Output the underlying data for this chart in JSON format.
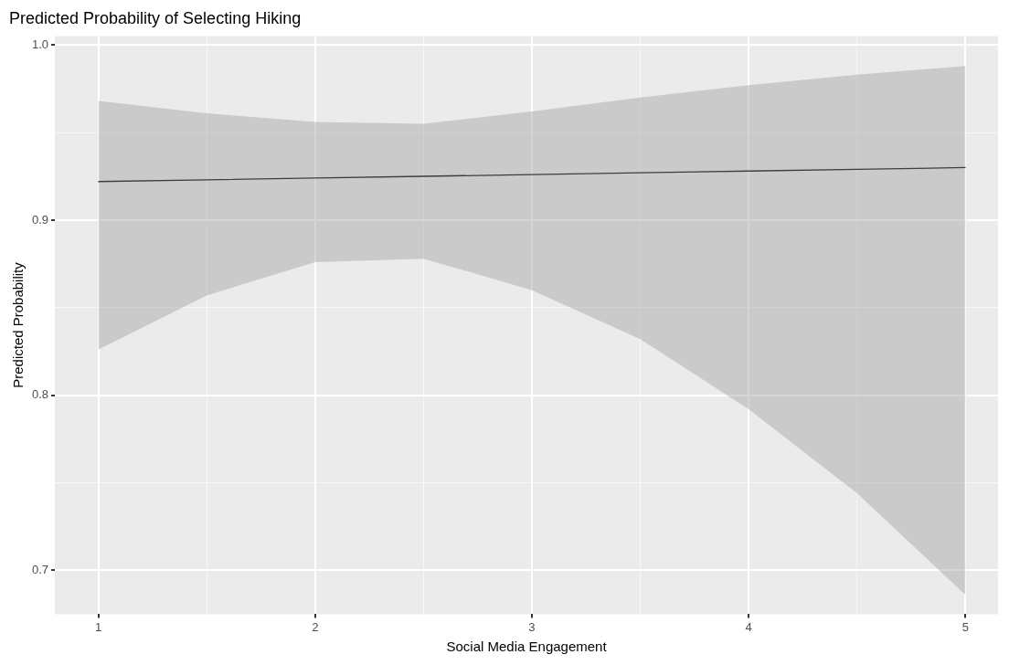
{
  "chart_data": {
    "type": "line",
    "title": "Predicted Probability of Selecting Hiking",
    "xlabel": "Social Media Engagement",
    "ylabel": "Predicted Probability",
    "x": [
      1,
      1.5,
      2,
      2.5,
      3,
      3.5,
      4,
      4.5,
      5
    ],
    "series": [
      {
        "color": "#000000",
        "values": [
          0.922,
          0.923,
          0.924,
          0.925,
          0.926,
          0.927,
          0.928,
          0.929,
          0.93
        ],
        "lower": [
          0.826,
          0.857,
          0.876,
          0.878,
          0.86,
          0.832,
          0.792,
          0.744,
          0.686
        ],
        "upper": [
          0.968,
          0.961,
          0.956,
          0.955,
          0.962,
          0.97,
          0.977,
          0.983,
          0.988
        ]
      }
    ],
    "xlim": [
      0.8,
      5.15
    ],
    "ylim": [
      0.675,
      1.005
    ],
    "xticks": [
      1,
      {
        "value": 1.5,
        "label": null
      },
      2,
      {
        "value": 2.5,
        "label": null
      },
      3,
      {
        "value": 3.5,
        "label": null
      },
      4,
      {
        "value": 4.5,
        "label": null
      },
      5
    ],
    "yticks": [
      0.7,
      {
        "value": 0.75,
        "label": null
      },
      0.8,
      {
        "value": 0.85,
        "label": null
      },
      0.9,
      {
        "value": 0.95,
        "label": null
      },
      {
        "value": 1,
        "label": "1.0"
      }
    ],
    "grid": true,
    "legend": false,
    "marker": "none",
    "line_style": "solid"
  }
}
